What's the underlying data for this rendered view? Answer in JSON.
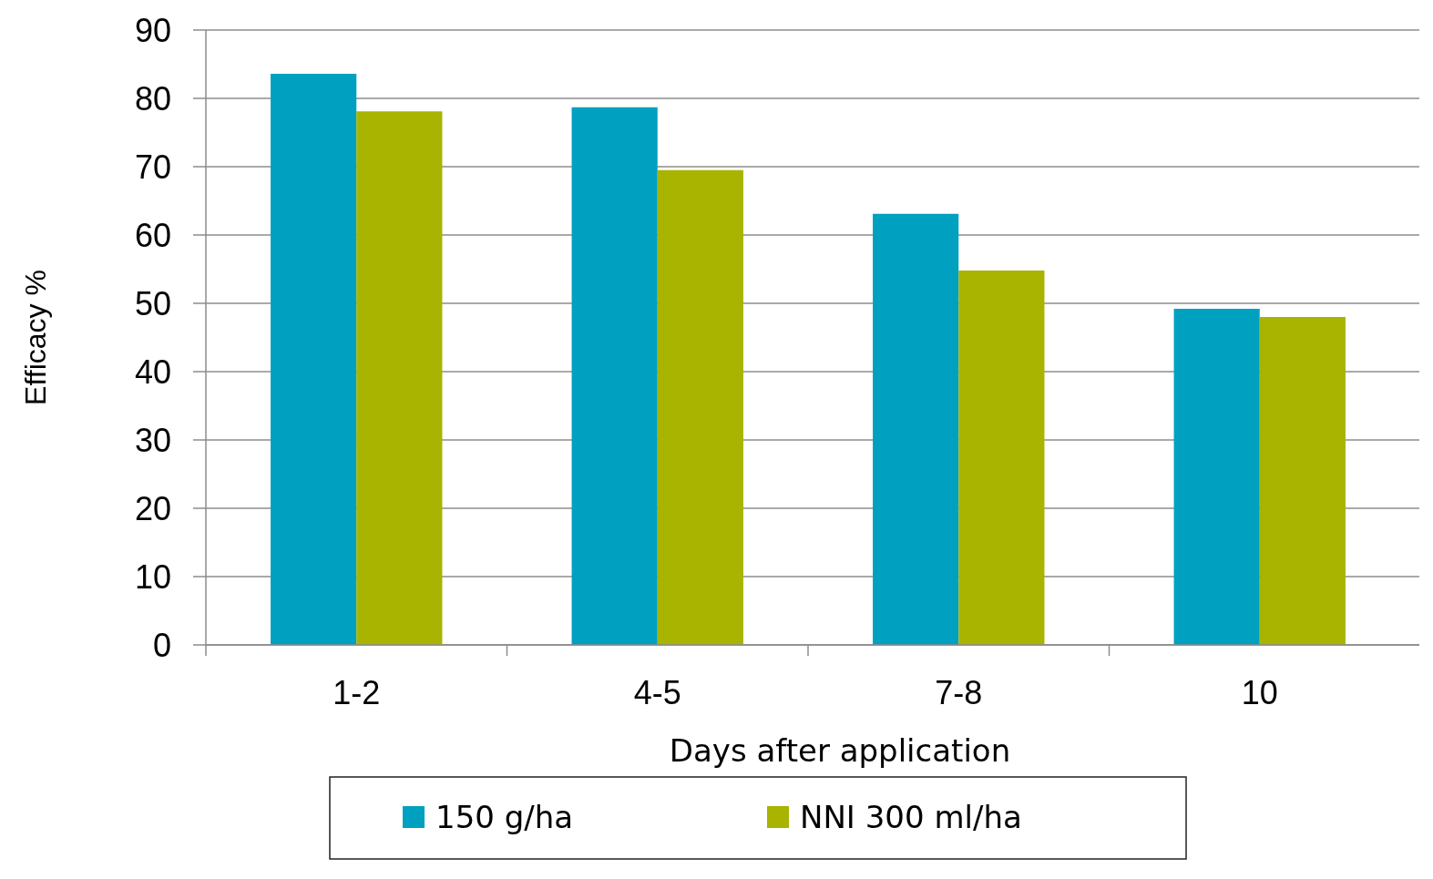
{
  "chart_data": {
    "type": "bar",
    "xlabel": "Days after application",
    "ylabel": "Efficacy %",
    "categories": [
      "1-2",
      "4-5",
      "7-8",
      "10"
    ],
    "series": [
      {
        "name": "150 g/ha",
        "color": "#00a0c0",
        "values": [
          83.6,
          78.7,
          63.1,
          49.2
        ]
      },
      {
        "name": "NNI 300 ml/ha",
        "color": "#a8b400",
        "values": [
          78.1,
          69.5,
          54.8,
          48.0
        ]
      }
    ],
    "ylim": [
      0,
      90
    ],
    "yticks": [
      0,
      10,
      20,
      30,
      40,
      50,
      60,
      70,
      80,
      90
    ],
    "grid": "y",
    "legend": "bottom"
  }
}
